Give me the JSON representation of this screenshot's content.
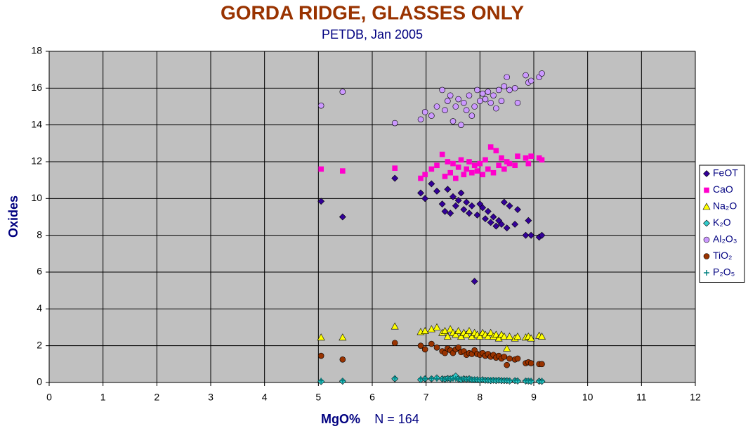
{
  "chart_data": {
    "type": "scatter",
    "title": "GORDA RIDGE, GLASSES ONLY",
    "subtitle": "PETDB, Jan 2005",
    "x_label": "MgO%",
    "annotation": "N = 164",
    "y_label": "Oxides",
    "xlim": [
      0,
      12
    ],
    "xticks": [
      0,
      1,
      2,
      3,
      4,
      5,
      6,
      7,
      8,
      9,
      10,
      11,
      12
    ],
    "ylim": [
      0,
      18
    ],
    "yticks": [
      0,
      2,
      4,
      6,
      8,
      10,
      12,
      14,
      16,
      18
    ],
    "grid": true,
    "legend": "right",
    "x": [
      5.05,
      5.45,
      6.42,
      6.9,
      6.98,
      7.1,
      7.2,
      7.3,
      7.35,
      7.4,
      7.45,
      7.5,
      7.55,
      7.6,
      7.65,
      7.7,
      7.75,
      7.8,
      7.85,
      7.9,
      7.95,
      8.0,
      8.05,
      8.1,
      8.15,
      8.2,
      8.25,
      8.3,
      8.35,
      8.4,
      8.45,
      8.5,
      8.55,
      8.65,
      8.7,
      8.85,
      8.9,
      8.95,
      9.1,
      9.15
    ],
    "series": [
      {
        "name": "FeOT",
        "color": "#330099",
        "marker": "diamond",
        "values": [
          9.85,
          9.0,
          11.1,
          10.3,
          10.0,
          10.8,
          10.4,
          9.7,
          9.3,
          10.5,
          9.2,
          10.1,
          9.6,
          9.9,
          10.3,
          9.4,
          9.8,
          9.2,
          9.6,
          5.5,
          9.1,
          9.7,
          9.5,
          8.9,
          9.3,
          8.7,
          9.0,
          8.5,
          8.8,
          8.6,
          9.8,
          8.4,
          9.6,
          8.6,
          9.4,
          8.0,
          8.8,
          8.0,
          7.9,
          8.0
        ]
      },
      {
        "name": "CaO",
        "color": "#ff00cc",
        "marker": "square",
        "values": [
          11.6,
          11.5,
          11.65,
          11.1,
          11.3,
          11.6,
          11.8,
          12.4,
          11.2,
          12.0,
          11.4,
          11.9,
          11.1,
          11.7,
          12.1,
          11.3,
          11.6,
          12.0,
          11.4,
          11.8,
          11.5,
          11.9,
          11.3,
          12.1,
          11.6,
          12.8,
          11.4,
          12.6,
          11.8,
          12.2,
          11.6,
          12.0,
          11.9,
          11.8,
          12.3,
          12.2,
          11.9,
          12.3,
          12.2,
          12.1
        ]
      },
      {
        "name": "Na₂O",
        "color": "#ffff00",
        "marker": "triangle",
        "values": [
          2.45,
          2.45,
          3.05,
          2.75,
          2.8,
          2.9,
          3.0,
          2.7,
          2.8,
          2.5,
          2.9,
          2.7,
          2.6,
          2.8,
          2.5,
          2.7,
          2.6,
          2.8,
          2.5,
          2.7,
          2.6,
          2.5,
          2.7,
          2.6,
          2.5,
          2.7,
          2.5,
          2.6,
          2.4,
          2.6,
          2.5,
          1.85,
          2.5,
          2.4,
          2.5,
          2.45,
          2.5,
          2.4,
          2.55,
          2.5
        ]
      },
      {
        "name": "K₂O",
        "color": "#33cccc",
        "marker": "diamond",
        "values": [
          0.05,
          0.07,
          0.2,
          0.15,
          0.2,
          0.2,
          0.25,
          0.2,
          0.18,
          0.22,
          0.2,
          0.25,
          0.35,
          0.2,
          0.15,
          0.2,
          0.18,
          0.2,
          0.15,
          0.15,
          0.15,
          0.13,
          0.15,
          0.12,
          0.12,
          0.1,
          0.12,
          0.1,
          0.12,
          0.1,
          0.1,
          0.1,
          0.08,
          0.1,
          0.08,
          0.08,
          0.08,
          0.06,
          0.07,
          0.06
        ]
      },
      {
        "name": "Al₂O₃",
        "color": "#cc99ff",
        "marker": "circle",
        "values": [
          15.05,
          15.8,
          14.1,
          14.3,
          14.7,
          14.5,
          15.0,
          15.9,
          14.8,
          15.3,
          15.6,
          14.2,
          15.0,
          15.4,
          14.0,
          15.2,
          14.8,
          15.6,
          14.5,
          15.0,
          15.9,
          15.3,
          15.7,
          15.4,
          15.8,
          15.2,
          15.6,
          14.9,
          15.9,
          15.3,
          16.1,
          16.6,
          15.9,
          16.0,
          15.2,
          16.7,
          16.3,
          16.4,
          16.6,
          16.8
        ]
      },
      {
        "name": "TiO₂",
        "color": "#993300",
        "marker": "circle",
        "values": [
          1.45,
          1.25,
          2.15,
          2.0,
          1.8,
          2.1,
          1.9,
          1.7,
          1.6,
          1.85,
          1.75,
          1.6,
          1.8,
          1.9,
          1.65,
          1.7,
          1.5,
          1.6,
          1.55,
          1.75,
          1.55,
          1.5,
          1.6,
          1.45,
          1.55,
          1.4,
          1.5,
          1.35,
          1.45,
          1.3,
          1.4,
          0.95,
          1.3,
          1.25,
          1.3,
          1.05,
          1.1,
          1.05,
          1.0,
          1.0
        ]
      },
      {
        "name": "P₂O₅",
        "color": "#008080",
        "marker": "plus",
        "values": [
          0.1,
          0.1,
          0.25,
          0.2,
          0.2,
          0.22,
          0.2,
          0.2,
          0.18,
          0.2,
          0.2,
          0.2,
          0.2,
          0.18,
          0.2,
          0.18,
          0.18,
          0.18,
          0.17,
          0.17,
          0.16,
          0.16,
          0.16,
          0.15,
          0.15,
          0.15,
          0.14,
          0.14,
          0.14,
          0.14,
          0.13,
          0.13,
          0.12,
          0.12,
          0.12,
          0.1,
          0.1,
          0.1,
          0.1,
          0.1
        ]
      }
    ]
  }
}
